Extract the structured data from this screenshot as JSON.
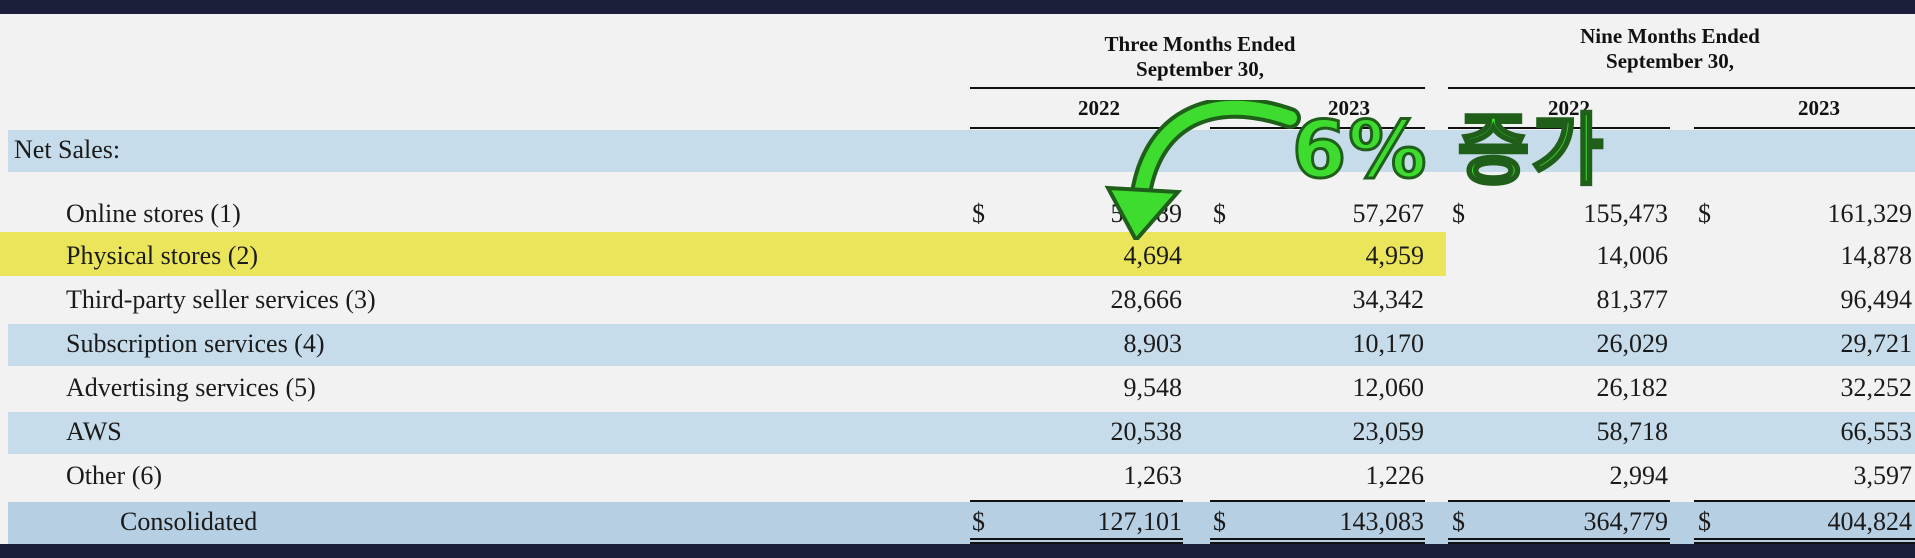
{
  "header": {
    "three_months_title": "Three Months Ended",
    "three_months_sub": "September 30,",
    "nine_months_title": "Nine Months Ended",
    "nine_months_sub": "September 30,",
    "years": [
      "2022",
      "2023",
      "2022",
      "2023"
    ]
  },
  "section_label": "Net Sales:",
  "currency": "$",
  "rows": [
    {
      "label": "Online stores (1)",
      "values": [
        "53,489",
        "57,267",
        "155,473",
        "161,329"
      ],
      "dollar": true,
      "style": "plain"
    },
    {
      "label": "Physical stores (2)",
      "values": [
        "4,694",
        "4,959",
        "14,006",
        "14,878"
      ],
      "dollar": false,
      "style": "yellow"
    },
    {
      "label": "Third-party seller services (3)",
      "values": [
        "28,666",
        "34,342",
        "81,377",
        "96,494"
      ],
      "dollar": false,
      "style": "plain"
    },
    {
      "label": "Subscription services (4)",
      "values": [
        "8,903",
        "10,170",
        "26,029",
        "29,721"
      ],
      "dollar": false,
      "style": "blue"
    },
    {
      "label": "Advertising services (5)",
      "values": [
        "9,548",
        "12,060",
        "26,182",
        "32,252"
      ],
      "dollar": false,
      "style": "plain"
    },
    {
      "label": "AWS",
      "values": [
        "20,538",
        "23,059",
        "58,718",
        "66,553"
      ],
      "dollar": false,
      "style": "blue"
    },
    {
      "label": "Other (6)",
      "values": [
        "1,263",
        "1,226",
        "2,994",
        "3,597"
      ],
      "dollar": false,
      "style": "plain"
    },
    {
      "label": "Consolidated",
      "values": [
        "127,101",
        "143,083",
        "364,779",
        "404,824"
      ],
      "dollar": true,
      "style": "total"
    }
  ],
  "annotation": {
    "text": "6% 증가",
    "color": "#3ddc2e",
    "icon": "curved-arrow-icon"
  },
  "colors": {
    "highlight": "#e9e45d",
    "row_blue": "#c7dcea",
    "background": "#1b1f3a"
  }
}
